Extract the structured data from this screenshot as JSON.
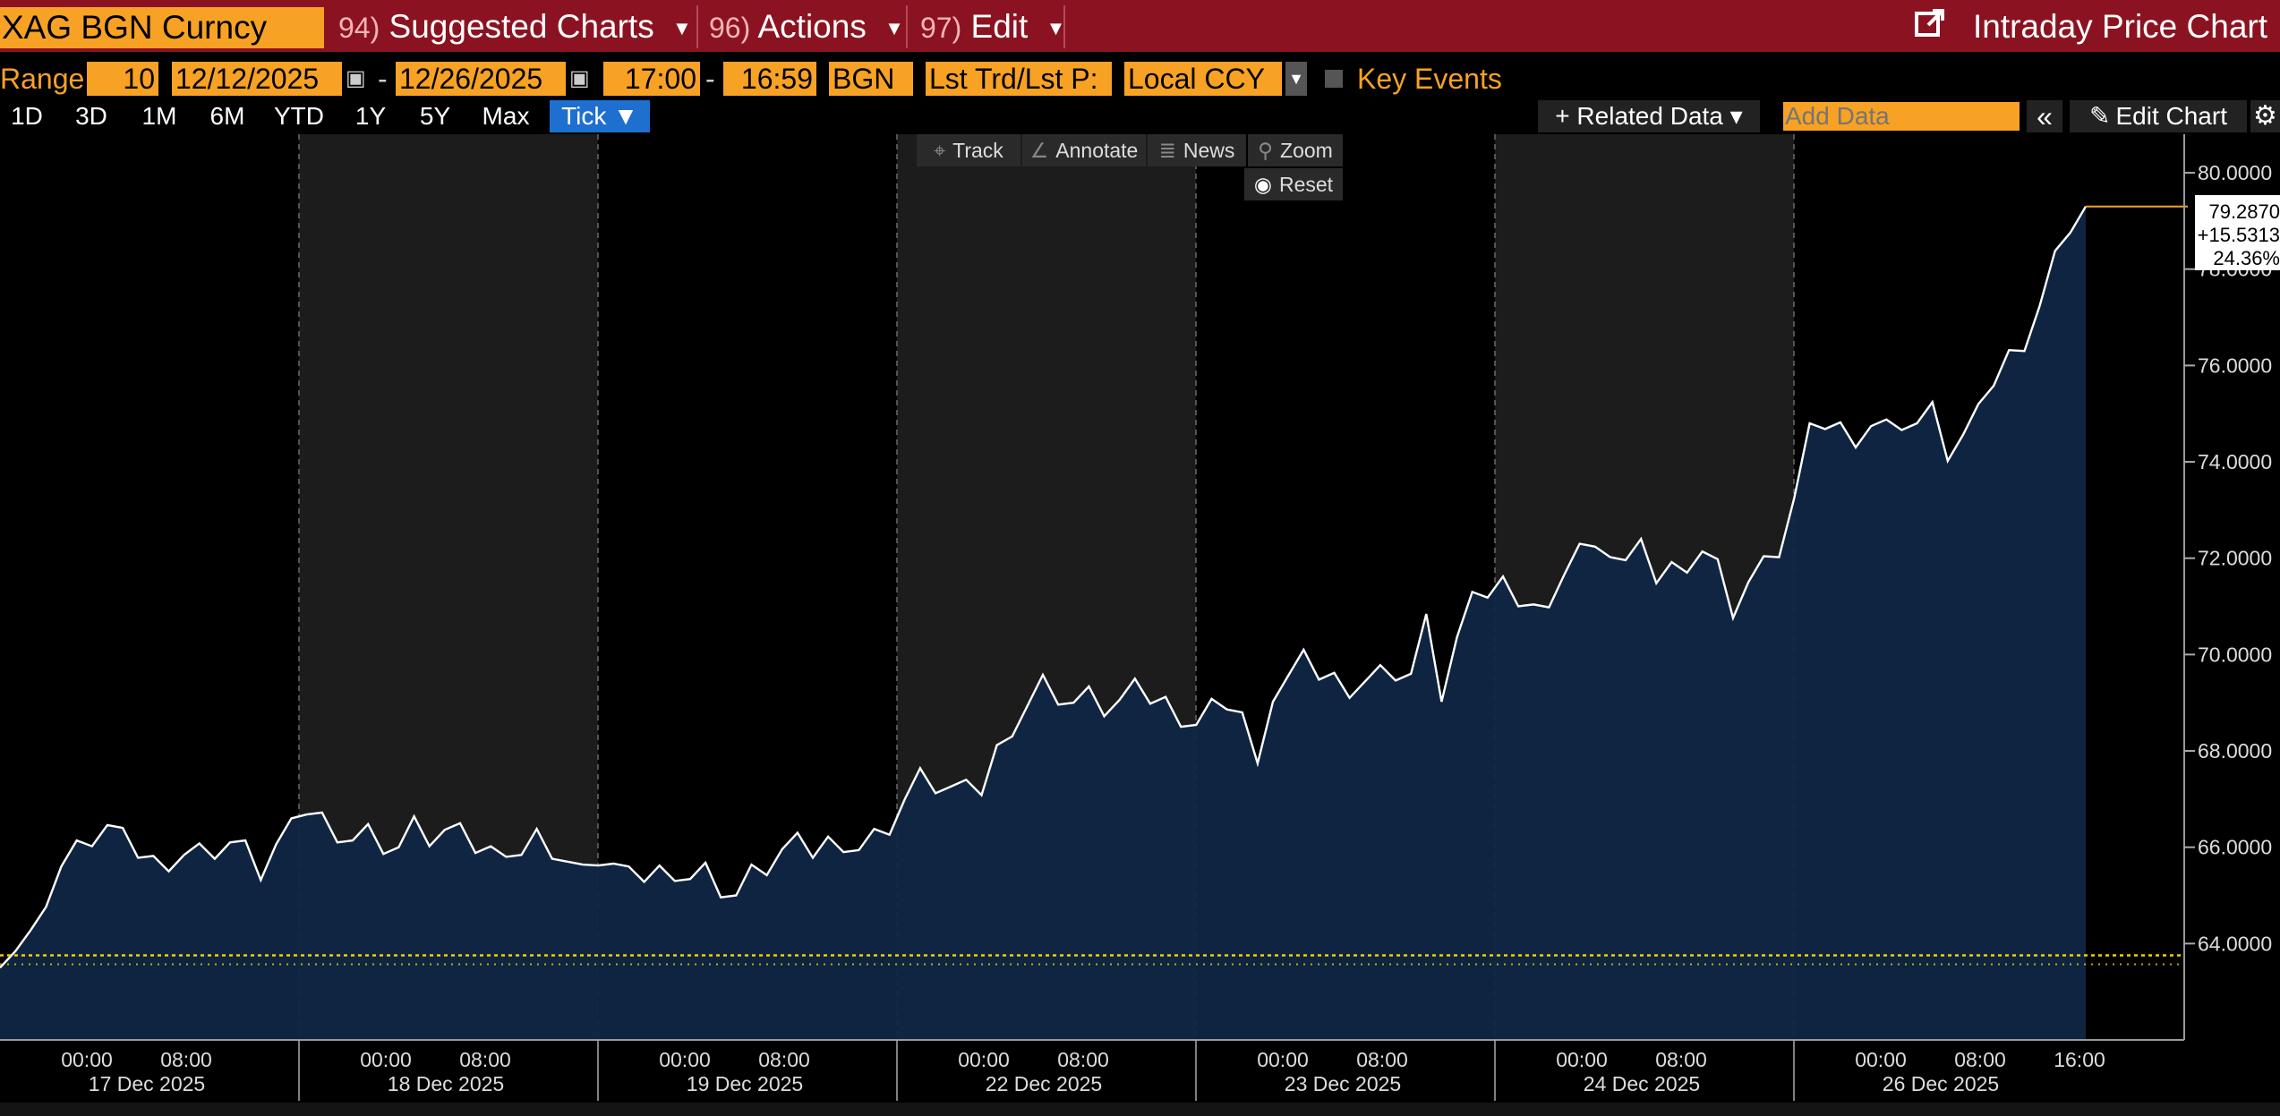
{
  "header": {
    "ticker": "XAG BGN Curncy",
    "menus": [
      {
        "num": "94)",
        "label": "Suggested Charts"
      },
      {
        "num": "96)",
        "label": "Actions"
      },
      {
        "num": "97)",
        "label": "Edit"
      }
    ],
    "title": "Intraday Price Chart"
  },
  "controls": {
    "range_label": "Range",
    "range_value": "10",
    "start_date": "12/12/2025",
    "end_date": "12/26/2025",
    "start_time": "17:00",
    "end_time": "16:59",
    "source": "BGN",
    "field": "Lst Trd/Lst P:",
    "currency": "Local CCY",
    "key_events": "Key Events",
    "dash": "-"
  },
  "periods": [
    "1D",
    "3D",
    "1M",
    "6M",
    "YTD",
    "1Y",
    "5Y",
    "Max",
    "Tick ▼"
  ],
  "toolbar": {
    "related_data": "+ Related Data ▾",
    "add_data_placeholder": "Add Data",
    "collapse": "«",
    "edit_chart": "Edit Chart",
    "tools": [
      "Track",
      "Annotate",
      "News",
      "Zoom"
    ],
    "reset": "Reset"
  },
  "chart_data": {
    "type": "line",
    "style": "area",
    "ylim": [
      62.0,
      80.8
    ],
    "y_ticks": [
      "80.0000",
      "78.0000",
      "76.0000",
      "74.0000",
      "72.0000",
      "70.0000",
      "68.0000",
      "66.0000",
      "64.0000"
    ],
    "y_tick_values": [
      80,
      78,
      76,
      74,
      72,
      70,
      68,
      66,
      64
    ],
    "last_value_label": [
      "79.2870",
      "+15.5313",
      "24.36%"
    ],
    "reference_line": 63.7557,
    "days": [
      {
        "date": "17 Dec 2025",
        "times": [
          "00:00",
          "08:00"
        ]
      },
      {
        "date": "18 Dec 2025",
        "times": [
          "00:00",
          "08:00"
        ]
      },
      {
        "date": "19 Dec 2025",
        "times": [
          "00:00",
          "08:00"
        ]
      },
      {
        "date": "22 Dec 2025",
        "times": [
          "00:00",
          "08:00"
        ]
      },
      {
        "date": "23 Dec 2025",
        "times": [
          "00:00",
          "08:00"
        ]
      },
      {
        "date": "24 Dec 2025",
        "times": [
          "00:00",
          "08:00"
        ]
      },
      {
        "date": "26 Dec 2025",
        "times": [
          "00:00",
          "08:00",
          "16:00"
        ]
      }
    ],
    "series": [
      {
        "values": [
          63.8,
          63.9,
          64.1,
          65.0,
          65.6,
          65.9,
          66.2,
          66.4,
          66.1,
          65.9,
          65.7,
          65.8,
          65.9,
          65.9,
          66.0,
          66.1,
          65.9,
          65.5,
          66.0,
          66.3,
          66.8,
          66.6,
          66.4,
          66.2,
          66.3,
          66.1,
          66.0,
          66.4,
          66.2,
          66.3,
          66.2,
          66.0,
          65.9,
          66.1,
          65.9,
          66.2,
          66.0,
          65.7,
          65.4,
          65.8,
          65.6,
          65.3,
          65.4,
          65.5,
          65.6,
          65.4,
          65.5,
          65.2,
          65.0,
          65.4,
          65.6,
          65.9,
          66.0,
          65.9,
          66.1,
          66.2,
          66.0,
          66.2,
          66.5,
          67.0,
          67.4,
          67.3,
          67.2,
          67.1,
          67.2,
          68.0,
          68.6,
          69.0,
          69.4,
          69.2,
          69.0,
          69.1,
          68.9,
          69.0,
          69.2,
          69.1,
          69.0,
          68.8,
          68.6,
          68.9,
          69.1,
          68.8,
          67.5,
          69.2,
          69.5,
          69.8,
          69.6,
          69.5,
          69.4,
          69.5,
          69.6,
          69.7,
          69.6,
          70.6,
          69.2,
          70.3,
          71.0,
          71.3,
          71.5,
          71.3,
          71.1,
          70.8,
          71.9,
          72.3,
          72.0,
          72.2,
          71.9,
          72.1,
          71.6,
          71.8,
          72.0,
          72.2,
          71.8,
          71.0,
          71.5,
          71.8,
          72.2,
          73.2,
          74.5,
          74.8,
          74.7,
          74.6,
          74.8,
          74.7,
          74.9,
          74.8,
          75.0,
          74.2,
          74.5,
          74.9,
          75.7,
          76.2,
          76.6,
          77.3,
          78.2,
          79.0,
          79.3
        ]
      }
    ]
  }
}
